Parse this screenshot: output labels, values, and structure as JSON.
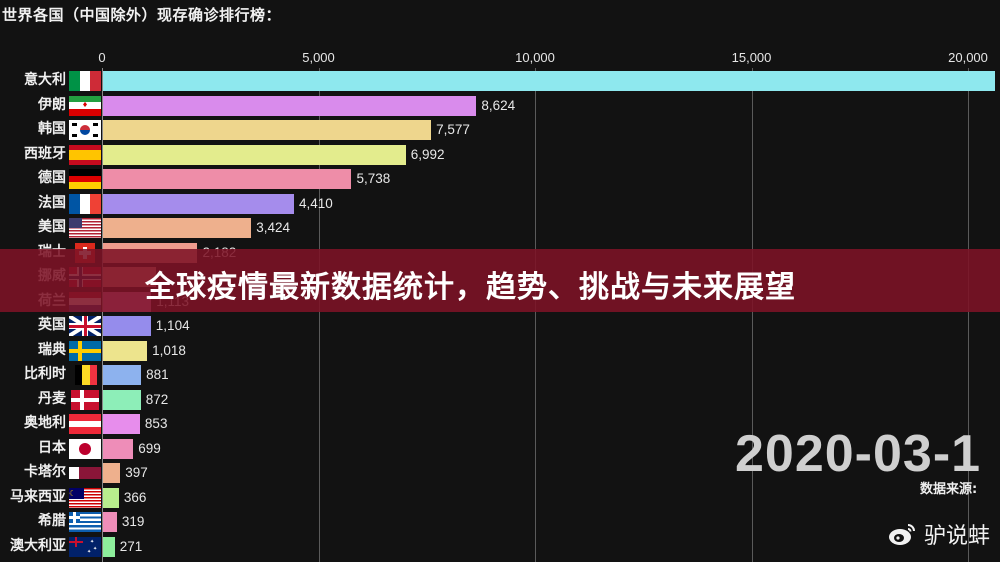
{
  "title": "世界各国（中国除外）现存确诊排行榜：",
  "banner": {
    "text": "全球疫情最新数据统计，趋势、挑战与未来展望"
  },
  "date_label": "2020-03-1",
  "source_label": "数据来源: ",
  "watermark": {
    "icon": "weibo-icon",
    "text": "驴说蚌"
  },
  "axis": {
    "ticks": [
      {
        "value": 0,
        "label": "0"
      },
      {
        "value": 5000,
        "label": "5,000"
      },
      {
        "value": 10000,
        "label": "10,000"
      },
      {
        "value": 15000,
        "label": "15,000"
      },
      {
        "value": 20000,
        "label": "20,000"
      }
    ]
  },
  "chart_data": {
    "type": "bar",
    "orientation": "horizontal",
    "title": "世界各国（中国除外）现存确诊排行榜：",
    "xlabel": "",
    "ylabel": "",
    "xlim": [
      0,
      20600
    ],
    "grid": true,
    "categories": [
      "意大利",
      "伊朗",
      "韩国",
      "西班牙",
      "德国",
      "法国",
      "美国",
      "瑞士",
      "挪威",
      "荷兰",
      "英国",
      "瑞典",
      "比利时",
      "丹麦",
      "奥地利",
      "日本",
      "卡塔尔",
      "马来西亚",
      "希腊",
      "澳大利亚"
    ],
    "values": [
      20600,
      8624,
      7577,
      6992,
      5738,
      4410,
      3424,
      2182,
      1221,
      1113,
      1104,
      1018,
      881,
      872,
      853,
      699,
      397,
      366,
      319,
      271
    ],
    "value_labels": [
      "",
      "8,624",
      "7,577",
      "6,992",
      "5,738",
      "4,410",
      "3,424",
      "2,182",
      "",
      "1,113",
      "1,104",
      "1,018",
      "881",
      "872",
      "853",
      "699",
      "397",
      "366",
      "319",
      "271"
    ],
    "colors": [
      "#8ee8ee",
      "#d98bec",
      "#eed68d",
      "#e3ec8d",
      "#ee8da8",
      "#a58cec",
      "#eeb08d",
      "#ee9b8d",
      "#ee9b8d",
      "#ee8dc8",
      "#958cec",
      "#ede48d",
      "#8db2ee",
      "#8deeb8",
      "#e78dec",
      "#ee8db8",
      "#eeb08d",
      "#b8ee8d",
      "#ee8db8",
      "#8dee9b"
    ],
    "date": "2020-03-1"
  },
  "rows": [
    {
      "name": "意大利",
      "flag": "italy-flag"
    },
    {
      "name": "伊朗",
      "flag": "iran-flag"
    },
    {
      "name": "韩国",
      "flag": "south-korea-flag"
    },
    {
      "name": "西班牙",
      "flag": "spain-flag"
    },
    {
      "name": "德国",
      "flag": "germany-flag"
    },
    {
      "name": "法国",
      "flag": "france-flag"
    },
    {
      "name": "美国",
      "flag": "usa-flag"
    },
    {
      "name": "瑞士",
      "flag": "switzerland-flag"
    },
    {
      "name": "挪威",
      "flag": "norway-flag"
    },
    {
      "name": "荷兰",
      "flag": "netherlands-flag"
    },
    {
      "name": "英国",
      "flag": "uk-flag"
    },
    {
      "name": "瑞典",
      "flag": "sweden-flag"
    },
    {
      "name": "比利时",
      "flag": "belgium-flag"
    },
    {
      "name": "丹麦",
      "flag": "denmark-flag"
    },
    {
      "name": "奥地利",
      "flag": "austria-flag"
    },
    {
      "name": "日本",
      "flag": "japan-flag"
    },
    {
      "name": "卡塔尔",
      "flag": "qatar-flag"
    },
    {
      "name": "马来西亚",
      "flag": "malaysia-flag"
    },
    {
      "name": "希腊",
      "flag": "greece-flag"
    },
    {
      "name": "澳大利亚",
      "flag": "australia-flag"
    }
  ]
}
